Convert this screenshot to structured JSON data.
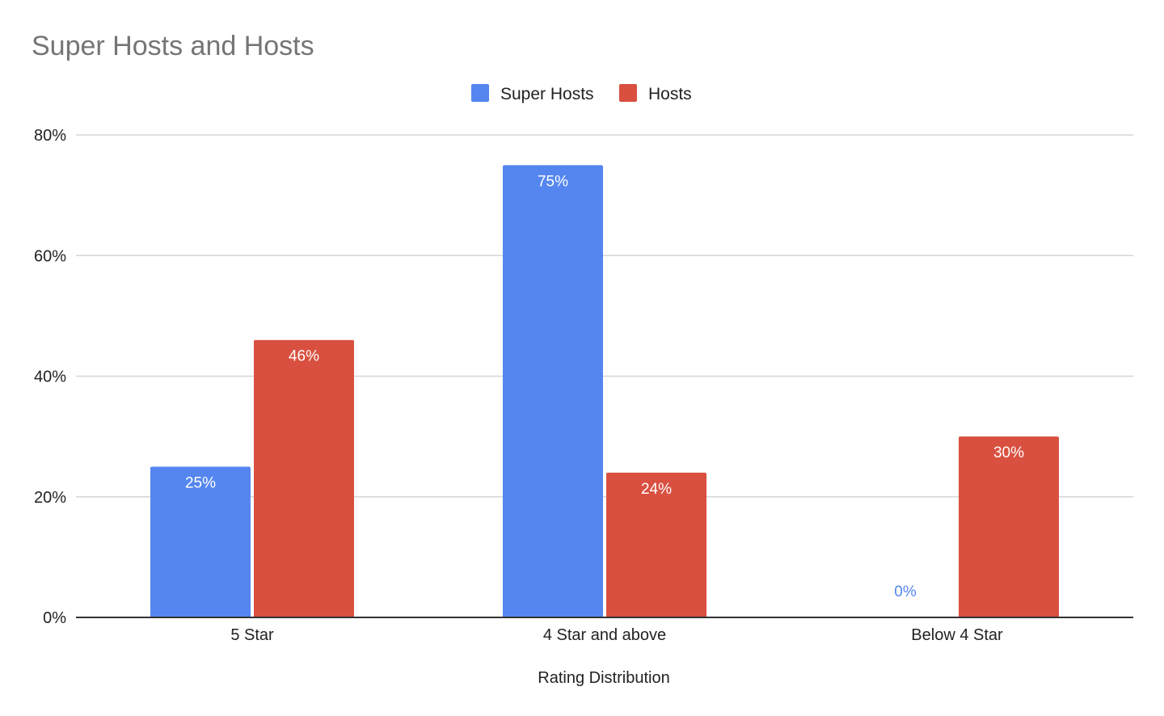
{
  "chart_data": {
    "type": "bar",
    "title": "Super Hosts and Hosts",
    "xlabel": "Rating Distribution",
    "ylabel": "",
    "categories": [
      "5 Star",
      "4 Star and above",
      "Below 4 Star"
    ],
    "series": [
      {
        "name": "Super Hosts",
        "color": "#5586ef",
        "values": [
          25,
          75,
          0
        ],
        "labels": [
          "25%",
          "75%",
          "0%"
        ]
      },
      {
        "name": "Hosts",
        "color": "#d95040",
        "values": [
          46,
          24,
          30
        ],
        "labels": [
          "46%",
          "24%",
          "30%"
        ]
      }
    ],
    "ylim": [
      0,
      80
    ],
    "yticks": [
      0,
      20,
      40,
      60,
      80
    ],
    "ytick_labels": [
      "0%",
      "20%",
      "40%",
      "60%",
      "80%"
    ],
    "grid": true,
    "legend_position": "top-center"
  }
}
